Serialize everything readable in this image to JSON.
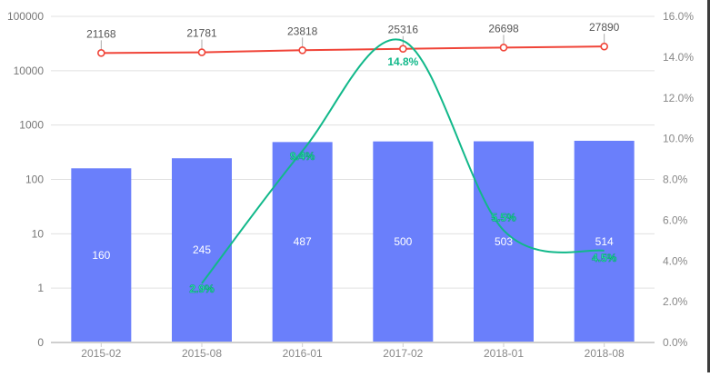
{
  "chart_data": {
    "type": "bar",
    "title": "",
    "categories": [
      "2015-02",
      "2015-08",
      "2016-01",
      "2017-02",
      "2018-01",
      "2018-08"
    ],
    "series": [
      {
        "name": "bars",
        "type": "bar",
        "axis": "left-log",
        "color": "#6a7ffb",
        "values": [
          160,
          245,
          487,
          500,
          503,
          514
        ],
        "labels": [
          "160",
          "245",
          "487",
          "500",
          "503",
          "514"
        ]
      },
      {
        "name": "red-line",
        "type": "line",
        "axis": "left-log",
        "color": "#f04438",
        "values": [
          21168,
          21781,
          23818,
          25316,
          26698,
          27890
        ],
        "labels": [
          "21168",
          "21781",
          "23818",
          "25316",
          "26698",
          "27890"
        ]
      },
      {
        "name": "green-line",
        "type": "line",
        "axis": "right",
        "color": "#11b88a",
        "smooth": true,
        "values": [
          null,
          2.9,
          9.4,
          14.8,
          5.5,
          4.5
        ],
        "labels": [
          "",
          "2.9%",
          "9.4%",
          "14.8%",
          "5.5%",
          "4.5%"
        ]
      }
    ],
    "left_axis": {
      "scale": "log",
      "ticks": [
        "0",
        "1",
        "10",
        "100",
        "1000",
        "10000",
        "100000"
      ]
    },
    "right_axis": {
      "ticks": [
        "0.0%",
        "2.0%",
        "4.0%",
        "6.0%",
        "8.0%",
        "10.0%",
        "12.0%",
        "14.0%",
        "16.0%"
      ],
      "ylim": [
        0,
        16
      ]
    },
    "xlabel": "",
    "ylabel": "",
    "grid": true,
    "legend": null
  }
}
